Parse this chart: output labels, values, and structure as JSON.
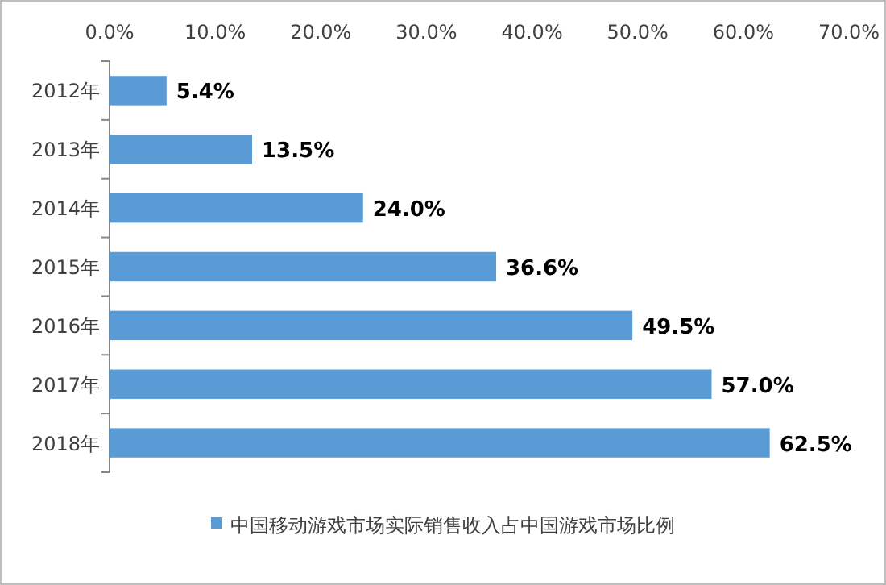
{
  "chart_data": {
    "type": "bar",
    "orientation": "horizontal",
    "categories": [
      "2012年",
      "2013年",
      "2014年",
      "2015年",
      "2016年",
      "2017年",
      "2018年"
    ],
    "series": [
      {
        "name": "中国移动游戏市场实际销售收入占中国游戏市场比例",
        "color": "#5b9bd5",
        "values": [
          5.4,
          13.5,
          24.0,
          36.6,
          49.5,
          57.0,
          62.5
        ],
        "value_labels": [
          "5.4%",
          "13.5%",
          "24.0%",
          "36.6%",
          "49.5%",
          "57.0%",
          "62.5%"
        ]
      }
    ],
    "xlim": [
      0,
      70
    ],
    "xticks": [
      {
        "value": 0,
        "label": "0.0%"
      },
      {
        "value": 10,
        "label": "10.0%"
      },
      {
        "value": 20,
        "label": "20.0%"
      },
      {
        "value": 30,
        "label": "30.0%"
      },
      {
        "value": 40,
        "label": "40.0%"
      },
      {
        "value": 50,
        "label": "50.0%"
      },
      {
        "value": 60,
        "label": "60.0%"
      },
      {
        "value": 70,
        "label": "70.0%"
      }
    ],
    "legend": "bottom"
  }
}
